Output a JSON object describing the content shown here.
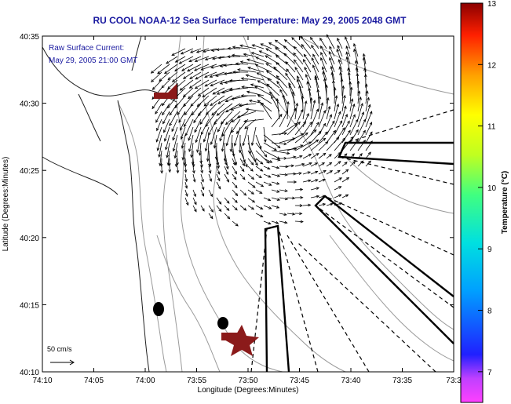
{
  "title": "RU COOL  NOAA-12  Sea Surface Temperature:  May 29, 2005 2048 GMT",
  "annotations": {
    "current_label": "Raw Surface Current:",
    "current_time": "May 29, 2005 21:00 GMT",
    "scale_label": "50 cm/s"
  },
  "axes": {
    "xlabel": "Longitude (Degrees:Minutes)",
    "ylabel": "Latitude (Degrees:Minutes)",
    "x_ticks": [
      "74:10",
      "74:05",
      "74:00",
      "73:55",
      "73:50",
      "73:45",
      "73:40",
      "73:35",
      "73:3"
    ],
    "y_ticks": [
      "40:35",
      "40:30",
      "40:25",
      "40:20",
      "40:15",
      "40:10"
    ],
    "xlim_minutes_west": [
      10,
      30
    ],
    "ylim_minutes_north": [
      10,
      35
    ]
  },
  "colorbar": {
    "label": "Temperature (°C)",
    "ticks": [
      "13",
      "12",
      "11",
      "10",
      "9",
      "8",
      "7"
    ],
    "range": [
      6.5,
      13
    ]
  },
  "chart_data": {
    "type": "map",
    "title": "RU COOL  NOAA-12  Sea Surface Temperature:  May 29, 2005 2048 GMT",
    "xlabel": "Longitude (Degrees:Minutes)",
    "ylabel": "Latitude (Degrees:Minutes)",
    "markers": [
      {
        "kind": "dot",
        "lon_min": 28.9,
        "lat_min": 14.6
      },
      {
        "kind": "dot",
        "lon_min": 22.6,
        "lat_min": 13.5
      },
      {
        "kind": "star",
        "lon_min": 20.4,
        "lat_min": 12.4
      }
    ],
    "current_field": "surface current vectors, 50 cm/s reference"
  },
  "colors": {
    "title": "#1a1aa0",
    "marker": "#8b1a1a",
    "land": "#ffffff",
    "contour": "#9a9a9a"
  }
}
